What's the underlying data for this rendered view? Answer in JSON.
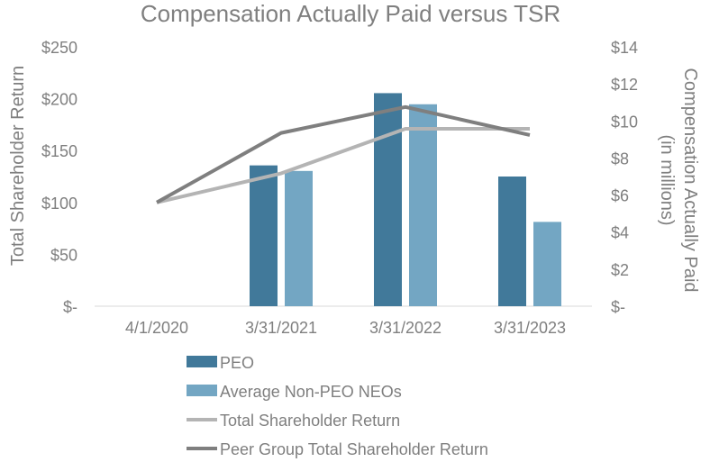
{
  "chart_data": {
    "type": "bar",
    "title": "Compensation Actually Paid versus TSR",
    "categories": [
      "4/1/2020",
      "3/31/2021",
      "3/31/2022",
      "3/31/2023"
    ],
    "y_left": {
      "label": "Total Shareholder Return",
      "range": [
        0,
        250
      ],
      "ticks": [
        0,
        50,
        100,
        150,
        200,
        250
      ],
      "tick_labels": [
        "$-",
        "$50",
        "$100",
        "$150",
        "$200",
        "$250"
      ]
    },
    "y_right": {
      "label_line1": "Compensation Actually Paid",
      "label_line2": "(in millions)",
      "range": [
        0,
        14
      ],
      "ticks": [
        0,
        2,
        4,
        6,
        8,
        10,
        12,
        14
      ],
      "tick_labels": [
        "$-",
        "$2",
        "$4",
        "$6",
        "$8",
        "$10",
        "$12",
        "$14"
      ]
    },
    "bar_series": [
      {
        "name": "PEO",
        "axis": "right",
        "color": "#41799a",
        "values": [
          null,
          7.6,
          11.5,
          7.0
        ]
      },
      {
        "name": "Average Non-PEO NEOs",
        "axis": "right",
        "color": "#73a6c3",
        "values": [
          null,
          7.3,
          10.9,
          4.55
        ]
      }
    ],
    "line_series": [
      {
        "name": "Total Shareholder Return",
        "axis": "left",
        "color": "#b4b4b4",
        "values": [
          100,
          128,
          171,
          171
        ]
      },
      {
        "name": "Peer Group Total Shareholder Return",
        "axis": "left",
        "color": "#7f7f7f",
        "values": [
          100,
          167,
          192,
          165
        ]
      }
    ],
    "grid": false,
    "legend_position": "bottom"
  }
}
